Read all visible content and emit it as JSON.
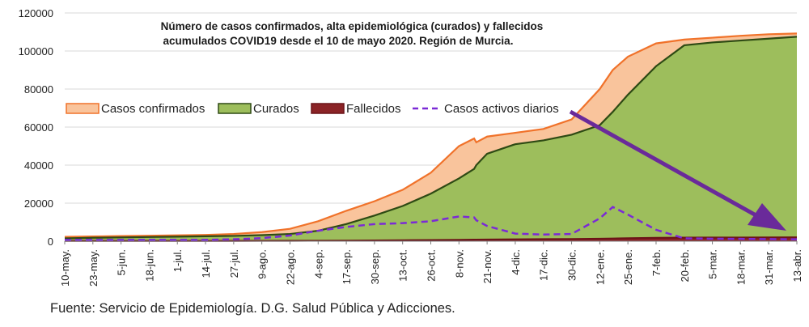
{
  "chart_data": {
    "type": "area",
    "title_lines": [
      "Número de casos confirmados, alta epidemiológica (curados) y fallecidos",
      "acumulados COVID19 desde el 10 de mayo 2020. Región de Murcia."
    ],
    "ylim": [
      0,
      120000
    ],
    "yticks": [
      0,
      20000,
      40000,
      60000,
      80000,
      100000,
      120000
    ],
    "x_tick_labels": [
      "10-may.",
      "23-may.",
      "5-jun.",
      "18-jun.",
      "1-jul.",
      "14-jul.",
      "27-jul.",
      "9-ago.",
      "22-ago.",
      "4-sep.",
      "17-sep.",
      "30-sep.",
      "13-oct.",
      "26-oct.",
      "8-nov.",
      "21-nov.",
      "4-dic.",
      "17-dic.",
      "30-dic.",
      "12-ene.",
      "25-ene.",
      "7-feb.",
      "20-feb.",
      "5-mar.",
      "18-mar.",
      "31-mar.",
      "13-abr."
    ],
    "x": [
      "10-may.",
      "23-may.",
      "5-jun.",
      "18-jun.",
      "1-jul.",
      "14-jul.",
      "27-jul.",
      "9-ago.",
      "22-ago.",
      "4-sep.",
      "17-sep.",
      "30-sep.",
      "13-oct.",
      "26-oct.",
      "8-nov.",
      "15-nov.",
      "16-nov.",
      "21-nov.",
      "4-dic.",
      "17-dic.",
      "30-dic.",
      "12-ene.",
      "18-ene.",
      "25-ene.",
      "7-feb.",
      "20-feb.",
      "5-mar.",
      "18-mar.",
      "31-mar.",
      "13-abr."
    ],
    "grid": "horizontal",
    "legend_position": "top-left",
    "series": [
      {
        "name": "Casos confirmados",
        "color": "#f0722a",
        "fill": "#f9c49c",
        "values": [
          2300,
          2500,
          2700,
          2900,
          3100,
          3300,
          3800,
          4800,
          6500,
          10500,
          16000,
          21000,
          27000,
          36000,
          50000,
          54000,
          52000,
          55000,
          57000,
          59000,
          64000,
          80000,
          90000,
          97000,
          104000,
          106000,
          107000,
          108000,
          108800,
          109200
        ]
      },
      {
        "name": "Curados",
        "color": "#2e4a14",
        "fill": "#9dbe5c",
        "values": [
          1500,
          1800,
          2000,
          2200,
          2400,
          2600,
          2800,
          3200,
          3800,
          5500,
          9000,
          13500,
          18500,
          25000,
          33000,
          38000,
          40000,
          46000,
          51000,
          53000,
          56000,
          61000,
          68000,
          77000,
          92000,
          103000,
          104500,
          105500,
          106500,
          107500
        ]
      },
      {
        "name": "Fallecidos",
        "color": "#6b1418",
        "fill": "#8b2326",
        "values": [
          150,
          150,
          150,
          160,
          160,
          160,
          170,
          180,
          200,
          250,
          300,
          400,
          500,
          600,
          700,
          800,
          820,
          850,
          950,
          1050,
          1150,
          1300,
          1400,
          1550,
          1750,
          1850,
          1900,
          1950,
          2000,
          2050
        ]
      },
      {
        "name": "Casos activos diarios",
        "color": "#7b2ad6",
        "style": "dashed",
        "values": [
          700,
          700,
          700,
          700,
          700,
          700,
          1000,
          1600,
          3000,
          5500,
          7500,
          9000,
          9500,
          10500,
          13000,
          12500,
          11000,
          8000,
          4000,
          3500,
          3800,
          12000,
          18000,
          14000,
          6000,
          1500,
          1300,
          1200,
          1100,
          1000
        ]
      }
    ],
    "annotations": [
      "purple arrow pointing down-right toward the drop of active cases"
    ]
  },
  "source_note": "Fuente: Servicio de Epidemiología. D.G. Salud Pública y Adicciones."
}
